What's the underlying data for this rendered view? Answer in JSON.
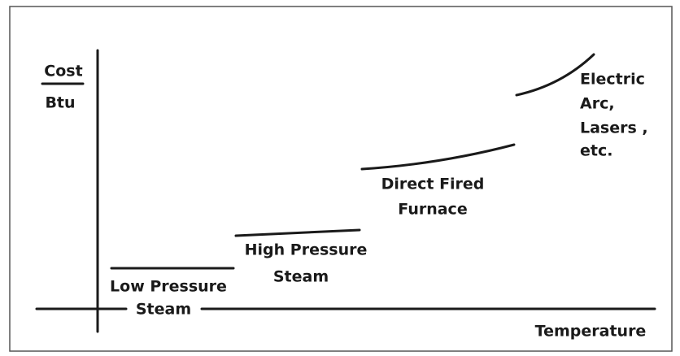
{
  "y_label": {
    "numerator": "Cost",
    "denominator": "Btu"
  },
  "x_label": "Temperature",
  "segments": [
    {
      "lines": [
        "Low Pressure",
        "Steam"
      ]
    },
    {
      "lines": [
        "High Pressure",
        "Steam"
      ]
    },
    {
      "lines": [
        "Direct Fired",
        "Furnace"
      ]
    },
    {
      "lines": [
        "Electric",
        "Arc,",
        "Lasers ,",
        "etc."
      ]
    }
  ]
}
